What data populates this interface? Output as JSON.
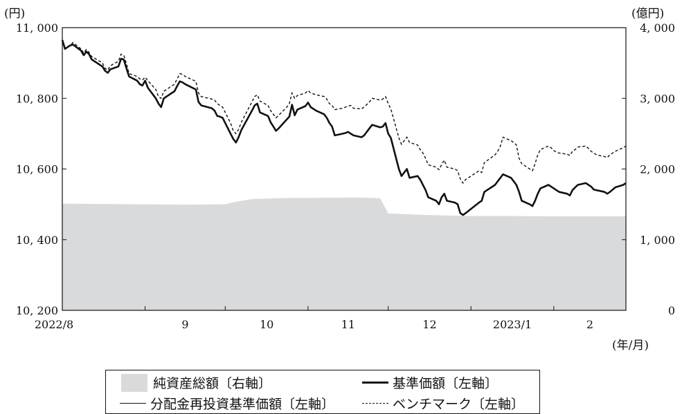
{
  "chart_data": {
    "type": "line",
    "left_axis": {
      "unit": "(円)",
      "range": [
        10200,
        11000
      ],
      "ticks": [
        "10, 200",
        "10, 400",
        "10, 600",
        "10, 800",
        "11, 000"
      ]
    },
    "right_axis": {
      "unit": "(億円)",
      "range": [
        0,
        4000
      ],
      "ticks": [
        "0",
        "1, 000",
        "2, 000",
        "3, 000",
        "4, 000"
      ]
    },
    "x_axis": {
      "unit": "(年/月)",
      "range": [
        "2022-08-01",
        "2023-02-28"
      ],
      "tick_labels": [
        "2022/8",
        "9",
        "10",
        "11",
        "12",
        "2023/1",
        "2"
      ],
      "tick_dates": [
        "2022-08-01",
        "2022-09-01",
        "2022-10-01",
        "2022-11-01",
        "2022-12-01",
        "2023-01-01",
        "2023-02-01"
      ]
    },
    "series": [
      {
        "name": "純資産総額〔右軸〕",
        "axis": "right",
        "style": "area",
        "color": "#d9dadb",
        "dates": [
          "2022-08-01",
          "2022-08-15",
          "2022-09-01",
          "2022-09-15",
          "2022-10-01",
          "2022-10-03",
          "2022-10-05",
          "2022-10-11",
          "2022-10-25",
          "2022-11-01",
          "2022-11-15",
          "2022-11-20",
          "2022-11-25",
          "2022-11-28",
          "2022-12-01",
          "2022-12-15",
          "2023-01-01",
          "2023-01-15",
          "2023-02-01",
          "2023-02-28"
        ],
        "values": [
          1510,
          1505,
          1500,
          1495,
          1500,
          1520,
          1535,
          1575,
          1590,
          1590,
          1595,
          1595,
          1590,
          1585,
          1370,
          1350,
          1335,
          1335,
          1330,
          1330
        ]
      },
      {
        "name": "基準価額〔左軸〕",
        "axis": "left",
        "style": "thick",
        "color": "#111111",
        "dates": [
          "2022-08-01",
          "2022-08-02",
          "2022-08-04",
          "2022-08-05",
          "2022-08-08",
          "2022-08-09",
          "2022-08-10",
          "2022-08-11",
          "2022-08-12",
          "2022-08-15",
          "2022-08-16",
          "2022-08-17",
          "2022-08-18",
          "2022-08-19",
          "2022-08-22",
          "2022-08-23",
          "2022-08-24",
          "2022-08-25",
          "2022-08-26",
          "2022-08-29",
          "2022-08-30",
          "2022-08-31",
          "2022-09-01",
          "2022-09-02",
          "2022-09-05",
          "2022-09-06",
          "2022-09-07",
          "2022-09-08",
          "2022-09-09",
          "2022-09-12",
          "2022-09-13",
          "2022-09-14",
          "2022-09-15",
          "2022-09-16",
          "2022-09-20",
          "2022-09-21",
          "2022-09-22",
          "2022-09-26",
          "2022-09-27",
          "2022-09-28",
          "2022-09-29",
          "2022-09-30",
          "2022-10-03",
          "2022-10-04",
          "2022-10-05",
          "2022-10-06",
          "2022-10-07",
          "2022-10-11",
          "2022-10-12",
          "2022-10-13",
          "2022-10-14",
          "2022-10-17",
          "2022-10-18",
          "2022-10-19",
          "2022-10-20",
          "2022-10-21",
          "2022-10-24",
          "2022-10-25",
          "2022-10-26",
          "2022-10-27",
          "2022-10-28",
          "2022-10-31",
          "2022-11-01",
          "2022-11-02",
          "2022-11-04",
          "2022-11-07",
          "2022-11-08",
          "2022-11-09",
          "2022-11-10",
          "2022-11-11",
          "2022-11-14",
          "2022-11-15",
          "2022-11-16",
          "2022-11-17",
          "2022-11-18",
          "2022-11-21",
          "2022-11-22",
          "2022-11-24",
          "2022-11-25",
          "2022-11-28",
          "2022-11-29",
          "2022-11-30",
          "2022-12-01",
          "2022-12-02",
          "2022-12-05",
          "2022-12-06",
          "2022-12-07",
          "2022-12-08",
          "2022-12-09",
          "2022-12-12",
          "2022-12-13",
          "2022-12-14",
          "2022-12-15",
          "2022-12-16",
          "2022-12-19",
          "2022-12-20",
          "2022-12-21",
          "2022-12-22",
          "2022-12-23",
          "2022-12-26",
          "2022-12-27",
          "2022-12-28",
          "2022-12-29",
          "2022-12-30",
          "2023-01-04",
          "2023-01-05",
          "2023-01-06",
          "2023-01-10",
          "2023-01-11",
          "2023-01-12",
          "2023-01-13",
          "2023-01-16",
          "2023-01-17",
          "2023-01-18",
          "2023-01-19",
          "2023-01-20",
          "2023-01-23",
          "2023-01-24",
          "2023-01-25",
          "2023-01-26",
          "2023-01-27",
          "2023-01-30",
          "2023-01-31",
          "2023-02-01",
          "2023-02-02",
          "2023-02-03",
          "2023-02-06",
          "2023-02-07",
          "2023-02-08",
          "2023-02-09",
          "2023-02-10",
          "2023-02-13",
          "2023-02-14",
          "2023-02-15",
          "2023-02-16",
          "2023-02-17",
          "2023-02-20",
          "2023-02-21",
          "2023-02-22",
          "2023-02-24",
          "2023-02-27",
          "2023-02-28"
        ],
        "values": [
          10965,
          10940,
          10950,
          10952,
          10935,
          10922,
          10932,
          10925,
          10910,
          10895,
          10890,
          10878,
          10872,
          10882,
          10890,
          10912,
          10910,
          10885,
          10862,
          10850,
          10840,
          10836,
          10850,
          10830,
          10800,
          10785,
          10775,
          10800,
          10805,
          10820,
          10835,
          10848,
          10845,
          10840,
          10825,
          10790,
          10780,
          10772,
          10765,
          10750,
          10748,
          10745,
          10700,
          10685,
          10675,
          10690,
          10710,
          10765,
          10780,
          10785,
          10760,
          10750,
          10732,
          10720,
          10708,
          10715,
          10740,
          10748,
          10782,
          10752,
          10768,
          10778,
          10788,
          10775,
          10765,
          10755,
          10745,
          10730,
          10720,
          10695,
          10700,
          10702,
          10705,
          10700,
          10695,
          10690,
          10695,
          10715,
          10725,
          10718,
          10720,
          10730,
          10700,
          10688,
          10600,
          10580,
          10590,
          10600,
          10575,
          10580,
          10570,
          10555,
          10540,
          10520,
          10510,
          10500,
          10520,
          10530,
          10510,
          10505,
          10500,
          10475,
          10470,
          10475,
          10505,
          10510,
          10535,
          10555,
          10565,
          10575,
          10585,
          10575,
          10565,
          10555,
          10535,
          10510,
          10500,
          10495,
          10510,
          10530,
          10545,
          10555,
          10550,
          10545,
          10540,
          10535,
          10530,
          10525,
          10540,
          10548,
          10555,
          10560,
          10555,
          10550,
          10542,
          10540,
          10535,
          10530,
          10535,
          10548,
          10555,
          10560
        ]
      },
      {
        "name": "分配金再投資基準価額〔左軸〕",
        "axis": "left",
        "style": "thin",
        "color": "#111111",
        "same_as": "基準価額〔左軸〕"
      },
      {
        "name": "ベンチマーク〔左軸〕",
        "axis": "left",
        "style": "dashed",
        "color": "#111111",
        "dates": [
          "2022-08-01",
          "2022-08-02",
          "2022-08-04",
          "2022-08-05",
          "2022-08-08",
          "2022-08-09",
          "2022-08-10",
          "2022-08-11",
          "2022-08-12",
          "2022-08-15",
          "2022-08-16",
          "2022-08-17",
          "2022-08-18",
          "2022-08-19",
          "2022-08-22",
          "2022-08-23",
          "2022-08-24",
          "2022-08-25",
          "2022-08-26",
          "2022-08-29",
          "2022-08-30",
          "2022-08-31",
          "2022-09-01",
          "2022-09-02",
          "2022-09-05",
          "2022-09-06",
          "2022-09-07",
          "2022-09-08",
          "2022-09-09",
          "2022-09-12",
          "2022-09-13",
          "2022-09-14",
          "2022-09-15",
          "2022-09-16",
          "2022-09-20",
          "2022-09-21",
          "2022-09-22",
          "2022-09-26",
          "2022-09-27",
          "2022-09-28",
          "2022-09-29",
          "2022-09-30",
          "2022-10-03",
          "2022-10-04",
          "2022-10-05",
          "2022-10-06",
          "2022-10-07",
          "2022-10-11",
          "2022-10-12",
          "2022-10-13",
          "2022-10-14",
          "2022-10-17",
          "2022-10-18",
          "2022-10-19",
          "2022-10-20",
          "2022-10-21",
          "2022-10-24",
          "2022-10-25",
          "2022-10-26",
          "2022-10-27",
          "2022-10-28",
          "2022-10-31",
          "2022-11-01",
          "2022-11-02",
          "2022-11-04",
          "2022-11-07",
          "2022-11-08",
          "2022-11-09",
          "2022-11-10",
          "2022-11-11",
          "2022-11-14",
          "2022-11-15",
          "2022-11-16",
          "2022-11-17",
          "2022-11-18",
          "2022-11-21",
          "2022-11-22",
          "2022-11-24",
          "2022-11-25",
          "2022-11-28",
          "2022-11-29",
          "2022-11-30",
          "2022-12-01",
          "2022-12-02",
          "2022-12-05",
          "2022-12-06",
          "2022-12-07",
          "2022-12-08",
          "2022-12-09",
          "2022-12-12",
          "2022-12-13",
          "2022-12-14",
          "2022-12-15",
          "2022-12-16",
          "2022-12-19",
          "2022-12-20",
          "2022-12-21",
          "2022-12-22",
          "2022-12-23",
          "2022-12-26",
          "2022-12-27",
          "2022-12-28",
          "2022-12-29",
          "2022-12-30",
          "2023-01-04",
          "2023-01-05",
          "2023-01-06",
          "2023-01-10",
          "2023-01-11",
          "2023-01-12",
          "2023-01-13",
          "2023-01-16",
          "2023-01-17",
          "2023-01-18",
          "2023-01-19",
          "2023-01-20",
          "2023-01-23",
          "2023-01-24",
          "2023-01-25",
          "2023-01-26",
          "2023-01-27",
          "2023-01-30",
          "2023-01-31",
          "2023-02-01",
          "2023-02-02",
          "2023-02-03",
          "2023-02-06",
          "2023-02-07",
          "2023-02-08",
          "2023-02-09",
          "2023-02-10",
          "2023-02-13",
          "2023-02-14",
          "2023-02-15",
          "2023-02-16",
          "2023-02-17",
          "2023-02-20",
          "2023-02-21",
          "2023-02-22",
          "2023-02-24",
          "2023-02-27",
          "2023-02-28"
        ],
        "values": [
          10960,
          10942,
          10950,
          10958,
          10940,
          10928,
          10938,
          10930,
          10918,
          10905,
          10900,
          10885,
          10880,
          10892,
          10905,
          10925,
          10922,
          10898,
          10870,
          10862,
          10855,
          10852,
          10860,
          10850,
          10825,
          10805,
          10800,
          10820,
          10825,
          10840,
          10855,
          10870,
          10868,
          10862,
          10848,
          10815,
          10805,
          10798,
          10795,
          10785,
          10780,
          10775,
          10730,
          10708,
          10700,
          10712,
          10732,
          10790,
          10805,
          10810,
          10792,
          10780,
          10765,
          10755,
          10745,
          10752,
          10775,
          10785,
          10815,
          10800,
          10808,
          10815,
          10822,
          10815,
          10810,
          10805,
          10798,
          10785,
          10780,
          10768,
          10772,
          10775,
          10778,
          10780,
          10772,
          10770,
          10775,
          10790,
          10800,
          10795,
          10798,
          10805,
          10785,
          10770,
          10688,
          10670,
          10680,
          10690,
          10675,
          10668,
          10655,
          10645,
          10630,
          10612,
          10605,
          10598,
          10612,
          10625,
          10605,
          10600,
          10595,
          10572,
          10560,
          10570,
          10595,
          10590,
          10618,
          10640,
          10650,
          10665,
          10690,
          10680,
          10675,
          10668,
          10630,
          10615,
          10600,
          10595,
          10615,
          10640,
          10655,
          10665,
          10660,
          10652,
          10648,
          10645,
          10642,
          10638,
          10650,
          10655,
          10662,
          10665,
          10658,
          10650,
          10645,
          10640,
          10635,
          10632,
          10640,
          10650,
          10660,
          10665
        ]
      }
    ]
  }
}
